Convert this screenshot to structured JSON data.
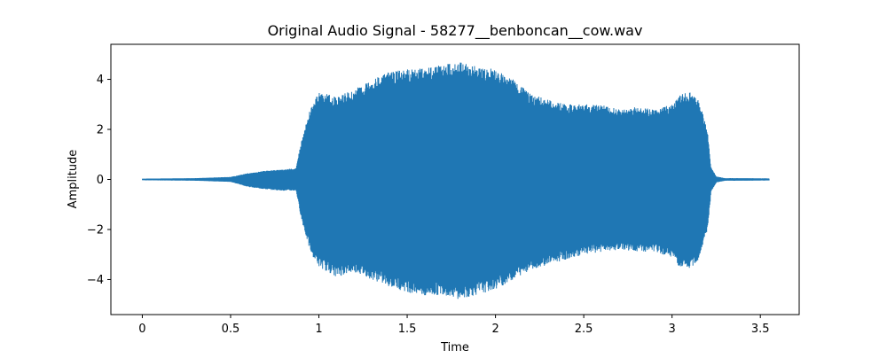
{
  "chart_data": {
    "type": "area",
    "title": "Original Audio Signal - 58277__benboncan__cow.wav",
    "xlabel": "Time",
    "ylabel": "Amplitude",
    "xlim": [
      -0.178,
      3.72
    ],
    "ylim": [
      -5.4,
      5.4
    ],
    "x_ticks": [
      0,
      0.5,
      1,
      1.5,
      2,
      2.5,
      3,
      3.5
    ],
    "x_tick_labels": [
      "0",
      "0.5",
      "1",
      "1.5",
      "2",
      "2.5",
      "3",
      "3.5"
    ],
    "y_ticks": [
      -4,
      -2,
      0,
      2,
      4
    ],
    "y_tick_labels": [
      "−4",
      "−2",
      "0",
      "2",
      "4"
    ],
    "grid": false,
    "legend": "none",
    "series": [
      {
        "color": "#1f77b4",
        "envelope": {
          "t": [
            0,
            0.3,
            0.5,
            0.6,
            0.7,
            0.8,
            0.87,
            0.9,
            0.95,
            1.0,
            1.1,
            1.2,
            1.3,
            1.4,
            1.5,
            1.6,
            1.7,
            1.8,
            1.9,
            2.0,
            2.1,
            2.2,
            2.3,
            2.4,
            2.5,
            2.6,
            2.7,
            2.8,
            2.9,
            3.0,
            3.05,
            3.1,
            3.15,
            3.2,
            3.22,
            3.25,
            3.3,
            3.4,
            3.55
          ],
          "upper": [
            0.03,
            0.05,
            0.1,
            0.25,
            0.35,
            0.4,
            0.45,
            1.5,
            2.8,
            3.5,
            3.3,
            3.6,
            4.0,
            4.3,
            4.4,
            4.5,
            4.6,
            4.7,
            4.5,
            4.4,
            4.0,
            3.4,
            3.2,
            3.0,
            3.0,
            3.0,
            2.8,
            2.9,
            2.8,
            3.0,
            3.4,
            3.5,
            3.2,
            2.0,
            0.5,
            0.12,
            0.05,
            0.05,
            0.04
          ],
          "lower": [
            -0.03,
            -0.05,
            -0.1,
            -0.3,
            -0.4,
            -0.45,
            -0.45,
            -1.6,
            -2.9,
            -3.5,
            -3.9,
            -3.7,
            -4.0,
            -4.3,
            -4.5,
            -4.7,
            -4.6,
            -4.8,
            -4.6,
            -4.4,
            -4.0,
            -3.6,
            -3.4,
            -3.2,
            -3.0,
            -2.9,
            -2.8,
            -2.9,
            -2.9,
            -3.1,
            -3.6,
            -3.6,
            -3.2,
            -2.0,
            -0.5,
            -0.12,
            -0.05,
            -0.05,
            -0.04
          ]
        }
      }
    ]
  }
}
